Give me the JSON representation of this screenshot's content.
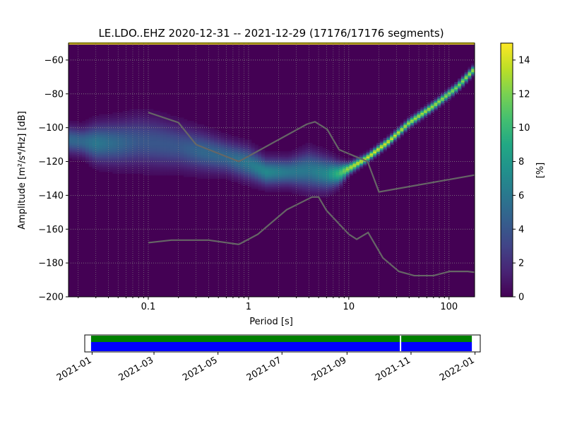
{
  "chart_data": [
    {
      "type": "heatmap",
      "title": "LE.LDO..EHZ   2020-12-31 -- 2021-12-29  (17176/17176 segments)",
      "xlabel": "Period [s]",
      "ylabel": "Amplitude [m²/s⁴/Hz] [dB]",
      "xscale": "log",
      "xlim": [
        0.016,
        180
      ],
      "ylim": [
        -200,
        -50
      ],
      "x_tick_labels": [
        {
          "value": 0.1,
          "label": "0.1"
        },
        {
          "value": 1,
          "label": "1"
        },
        {
          "value": 10,
          "label": "10"
        },
        {
          "value": 100,
          "label": "100"
        }
      ],
      "y_tick_labels": [
        {
          "value": -60,
          "label": "−60"
        },
        {
          "value": -80,
          "label": "−80"
        },
        {
          "value": -100,
          "label": "−100"
        },
        {
          "value": -120,
          "label": "−120"
        },
        {
          "value": -140,
          "label": "−140"
        },
        {
          "value": -160,
          "label": "−160"
        },
        {
          "value": -180,
          "label": "−180"
        },
        {
          "value": -200,
          "label": "−200"
        }
      ],
      "grid": true,
      "colorbar": {
        "label": "[%]",
        "range": [
          0,
          15
        ],
        "colormap": "viridis",
        "tick_labels": [
          {
            "value": 0,
            "label": "0"
          },
          {
            "value": 2,
            "label": "2"
          },
          {
            "value": 4,
            "label": "4"
          },
          {
            "value": 6,
            "label": "6"
          },
          {
            "value": 8,
            "label": "8"
          },
          {
            "value": 10,
            "label": "10"
          },
          {
            "value": 12,
            "label": "12"
          },
          {
            "value": 14,
            "label": "14"
          }
        ]
      },
      "density_band": [
        {
          "x": 0.016,
          "y": -107,
          "spread": 5,
          "peak": 5
        },
        {
          "x": 0.022,
          "y": -108,
          "spread": 5,
          "peak": 5
        },
        {
          "x": 0.03,
          "y": -109,
          "spread": 7,
          "peak": 6
        },
        {
          "x": 0.05,
          "y": -109,
          "spread": 8,
          "peak": 5
        },
        {
          "x": 0.08,
          "y": -108,
          "spread": 9,
          "peak": 4
        },
        {
          "x": 0.12,
          "y": -109,
          "spread": 9,
          "peak": 4
        },
        {
          "x": 0.2,
          "y": -111,
          "spread": 8,
          "peak": 4
        },
        {
          "x": 0.35,
          "y": -114,
          "spread": 7,
          "peak": 5
        },
        {
          "x": 0.6,
          "y": -117,
          "spread": 6,
          "peak": 5
        },
        {
          "x": 1.0,
          "y": -121,
          "spread": 6,
          "peak": 6
        },
        {
          "x": 1.5,
          "y": -126,
          "spread": 5,
          "peak": 7
        },
        {
          "x": 2.5,
          "y": -126,
          "spread": 5,
          "peak": 6
        },
        {
          "x": 4.0,
          "y": -125,
          "spread": 7,
          "peak": 6
        },
        {
          "x": 6.0,
          "y": -127,
          "spread": 6,
          "peak": 7
        },
        {
          "x": 8.0,
          "y": -127,
          "spread": 4,
          "peak": 10
        },
        {
          "x": 10,
          "y": -124,
          "spread": 2,
          "peak": 13
        },
        {
          "x": 15,
          "y": -118,
          "spread": 1.5,
          "peak": 14
        },
        {
          "x": 25,
          "y": -108,
          "spread": 1.5,
          "peak": 14
        },
        {
          "x": 40,
          "y": -97,
          "spread": 1.5,
          "peak": 13
        },
        {
          "x": 70,
          "y": -87,
          "spread": 1.5,
          "peak": 13
        },
        {
          "x": 120,
          "y": -76,
          "spread": 1.5,
          "peak": 12
        },
        {
          "x": 180,
          "y": -65,
          "spread": 1.5,
          "peak": 13
        }
      ],
      "series": [
        {
          "values": [
            {
              "x": 0.1,
              "y": -91
            },
            {
              "x": 0.2,
              "y": -97
            },
            {
              "x": 0.3,
              "y": -110
            },
            {
              "x": 0.8,
              "y": -120
            },
            {
              "x": 3.8,
              "y": -98
            },
            {
              "x": 4.6,
              "y": -96.5
            },
            {
              "x": 6.1,
              "y": -101
            },
            {
              "x": 8.0,
              "y": -113
            },
            {
              "x": 15.4,
              "y": -120
            },
            {
              "x": 20,
              "y": -138
            },
            {
              "x": 180,
              "y": -128
            }
          ]
        },
        {
          "values": [
            {
              "x": 0.1,
              "y": -168
            },
            {
              "x": 0.17,
              "y": -166.5
            },
            {
              "x": 0.4,
              "y": -166.5
            },
            {
              "x": 0.8,
              "y": -169
            },
            {
              "x": 1.24,
              "y": -163
            },
            {
              "x": 2.4,
              "y": -148.5
            },
            {
              "x": 4.3,
              "y": -141
            },
            {
              "x": 5.0,
              "y": -141
            },
            {
              "x": 6.0,
              "y": -149
            },
            {
              "x": 10,
              "y": -163
            },
            {
              "x": 12,
              "y": -166
            },
            {
              "x": 15.6,
              "y": -162
            },
            {
              "x": 21.9,
              "y": -177
            },
            {
              "x": 31.6,
              "y": -185
            },
            {
              "x": 45,
              "y": -187.5
            },
            {
              "x": 70,
              "y": -187.5
            },
            {
              "x": 101,
              "y": -185
            },
            {
              "x": 154,
              "y": -185
            },
            {
              "x": 180,
              "y": -185.5
            }
          ]
        }
      ]
    },
    {
      "type": "bar",
      "x_tick_labels": [
        "2021-01",
        "2021-03",
        "2021-05",
        "2021-07",
        "2021-09",
        "2021-11",
        "2022-01"
      ],
      "x_tick_dates": [
        "2021-01-01",
        "2021-03-01",
        "2021-05-01",
        "2021-07-01",
        "2021-09-01",
        "2021-11-01",
        "2022-01-01"
      ],
      "xlim": [
        "2020-12-25",
        "2022-01-06"
      ],
      "coverage": [
        {
          "color": "#008000",
          "start": "2020-12-31",
          "end": "2021-12-29"
        },
        {
          "color": "#0000ff",
          "start": "2020-12-31",
          "end": "2021-12-29"
        }
      ],
      "gaps": [
        "2021-10-22"
      ]
    }
  ],
  "colors": {
    "background": "#440154",
    "noise_model_line": "#666666",
    "top_highlight": "#fde725",
    "coverage_green": "#008000",
    "coverage_blue": "#0000ff",
    "gridline": "#888888"
  }
}
